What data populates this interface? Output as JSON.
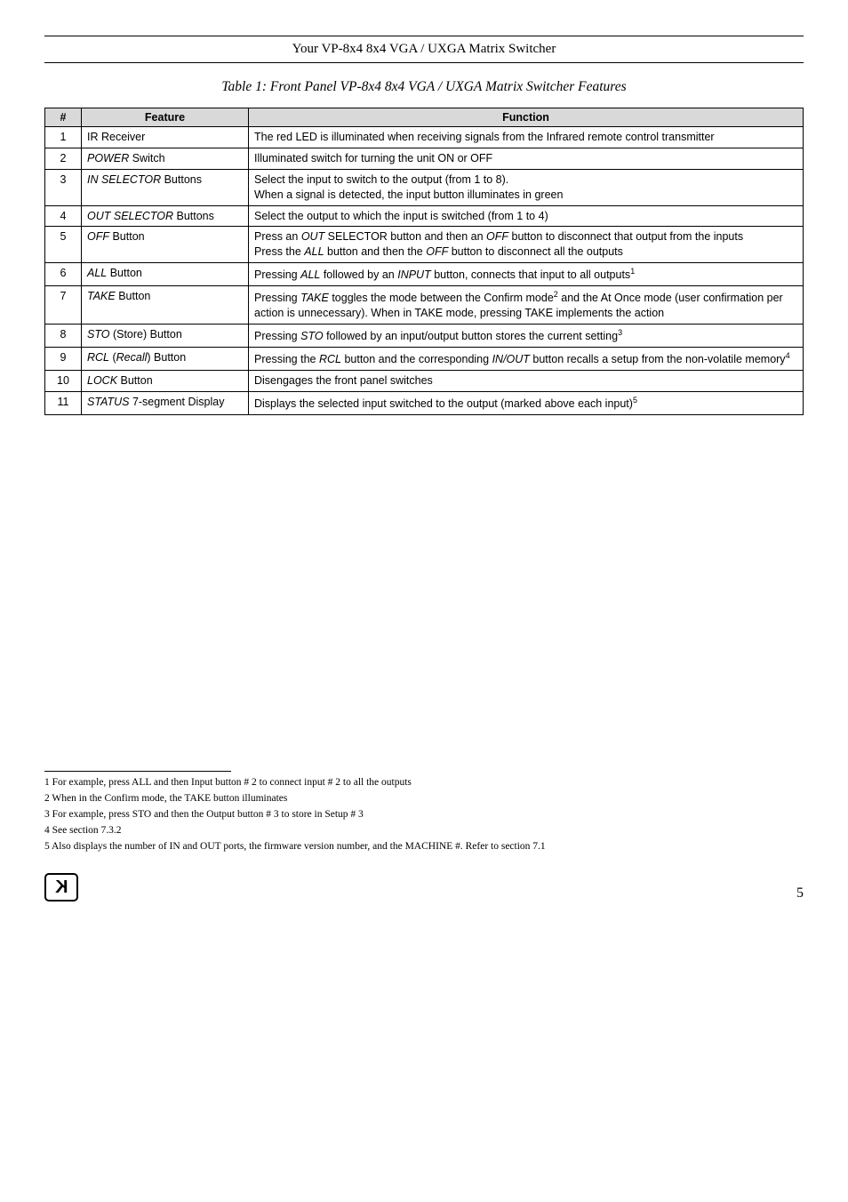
{
  "header": "Your VP-8x4 8x4 VGA / UXGA Matrix Switcher",
  "table_title": "Table 1: Front Panel VP-8x4 8x4 VGA / UXGA Matrix Switcher Features",
  "columns": [
    "#",
    "Feature",
    "Function"
  ],
  "rows": [
    {
      "n": "1",
      "feature_html": "IR Receiver",
      "function_html": "The red LED is illuminated when receiving signals from the Infrared remote control transmitter"
    },
    {
      "n": "2",
      "feature_html": "<span class='ital'>POWER</span> Switch",
      "function_html": "Illuminated switch for turning the unit ON or OFF"
    },
    {
      "n": "3",
      "feature_html": "<span class='ital'>IN SELECTOR</span> Buttons",
      "function_html": "Select the input to switch to the output (from 1 to 8).<br>When a signal is detected, the input button illuminates in green"
    },
    {
      "n": "4",
      "feature_html": "<span class='ital'>OUT SELECTOR</span> Buttons",
      "function_html": "Select the output to which the input is switched (from 1 to 4)"
    },
    {
      "n": "5",
      "feature_html": "<span class='ital'>OFF</span> Button",
      "function_html": "Press an <span class='ital'>OUT</span> SELECTOR button and then an <span class='ital'>OFF</span> button to disconnect that output from the inputs<br>Press the <span class='ital'>ALL</span> button and then the <span class='ital'>OFF</span> button to disconnect all the outputs"
    },
    {
      "n": "6",
      "feature_html": "<span class='ital'>ALL</span> Button",
      "function_html": "Pressing <span class='ital'>ALL</span> followed by an <span class='ital'>INPUT</span> button, connects that input to all outputs<span class='sup'>1</span>"
    },
    {
      "n": "7",
      "feature_html": "<span class='ital'>TAKE</span> Button",
      "function_html": "Pressing <span class='ital'>TAKE</span> toggles the mode between the Confirm mode<span class='sup'>2</span> and the At Once mode (user confirmation per action is unnecessary). When in TAKE mode, pressing TAKE implements the action"
    },
    {
      "n": "8",
      "feature_html": "<span class='ital'>STO</span> (Store) Button",
      "function_html": "Pressing <span class='ital'>STO</span> followed by an input/output button stores the current setting<span class='sup'>3</span>"
    },
    {
      "n": "9",
      "feature_html": "<span class='ital'>RCL</span> (<span class='ital'>Recall</span>) Button",
      "function_html": "Pressing the <span class='ital'>RCL</span> button and the corresponding <span class='ital'>IN/OUT</span> button recalls a setup from the non-volatile memory<span class='sup'>4</span>"
    },
    {
      "n": "10",
      "feature_html": "<span class='ital'>LOCK</span> Button",
      "function_html": "Disengages the front panel switches"
    },
    {
      "n": "11",
      "feature_html": "<span class='ital'>STATUS</span> 7-segment Display",
      "function_html": "Displays the selected input switched to the output (marked above each input)<span class='sup'>5</span>"
    }
  ],
  "footnotes": [
    "1 For example, press ALL and then Input button # 2 to connect input # 2 to all the outputs",
    "2 When in the Confirm mode, the TAKE button illuminates",
    "3 For example, press STO and then the Output button # 3 to store in Setup # 3",
    "4 See section 7.3.2",
    "5 Also displays the number of IN and OUT ports, the firmware version number, and the MACHINE #. Refer to section 7.1"
  ],
  "page_number": "5"
}
